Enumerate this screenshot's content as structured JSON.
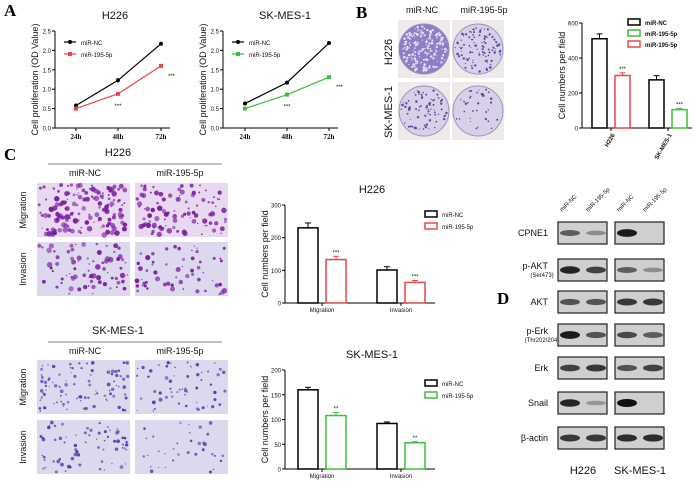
{
  "panel_labels": {
    "a": "A",
    "b": "B",
    "c": "C",
    "d": "D"
  },
  "colors": {
    "control": "#000000",
    "h226": "#e8474b",
    "skmes": "#3cbf3c",
    "stain_dense": "#7a2a9e",
    "stain_light": "#c9b4e0",
    "plate": "#8a7cc0"
  },
  "chart_data": [
    {
      "id": "A-H226",
      "type": "line",
      "title": "H226",
      "ylabel": "Cell proliferation (OD Value)",
      "ylim": [
        0,
        2.5
      ],
      "yticks": [
        0,
        0.5,
        1.0,
        1.5,
        2.0,
        2.5
      ],
      "ytick_labels": [
        "0.0",
        "0.5",
        "1.0",
        "1.5",
        "2.0",
        "2.5"
      ],
      "categories": [
        "24h",
        "48h",
        "72h"
      ],
      "legend": "top-left",
      "series": [
        {
          "name": "miR-NC",
          "color": "#000000",
          "values": [
            0.58,
            1.23,
            2.17
          ],
          "errors": [
            0.03,
            0.06,
            0.03
          ]
        },
        {
          "name": "miR-195-5p",
          "color": "#e8474b",
          "values": [
            0.5,
            0.88,
            1.6
          ],
          "errors": [
            0.03,
            0.03,
            0.05
          ]
        }
      ],
      "annotations": [
        "",
        "***",
        "***"
      ]
    },
    {
      "id": "A-SKMES1",
      "type": "line",
      "title": "SK-MES-1",
      "ylabel": "Cell proliferation (OD Value)",
      "ylim": [
        0,
        2.5
      ],
      "yticks": [
        0,
        0.5,
        1.0,
        1.5,
        2.0,
        2.5
      ],
      "ytick_labels": [
        "0.0",
        "0.5",
        "1.0",
        "1.5",
        "2.0",
        "2.5"
      ],
      "categories": [
        "24h",
        "48h",
        "72h"
      ],
      "legend": "top-left",
      "series": [
        {
          "name": "miR-NC",
          "color": "#000000",
          "values": [
            0.63,
            1.17,
            2.19
          ],
          "errors": [
            0.02,
            0.03,
            0.04
          ]
        },
        {
          "name": "miR-195-5p",
          "color": "#3cbf3c",
          "values": [
            0.5,
            0.86,
            1.31
          ],
          "errors": [
            0.02,
            0.02,
            0.03
          ]
        }
      ],
      "annotations": [
        "",
        "***",
        "***"
      ]
    },
    {
      "id": "B-colony",
      "type": "bar",
      "title": "",
      "ylabel": "Cell numbers per field",
      "ylim": [
        0,
        600
      ],
      "yticks": [
        0,
        200,
        400,
        600
      ],
      "ytick_labels": [
        "0",
        "200",
        "400",
        "600"
      ],
      "categories": [
        "H226",
        "SK-MES-1"
      ],
      "legend": "top-right",
      "legend_entries": [
        {
          "name": "miR-NC",
          "color": "#000000"
        },
        {
          "name": "miR-195-5p",
          "color": "#3cbf3c"
        },
        {
          "name": "miR-195-5p",
          "color": "#e8474b"
        }
      ],
      "groups": [
        {
          "bars": [
            {
              "value": 510,
              "error": 28,
              "color": "#000000",
              "label": ""
            },
            {
              "value": 300,
              "error": 15,
              "color": "#e8474b",
              "label": "***"
            }
          ]
        },
        {
          "bars": [
            {
              "value": 275,
              "error": 24,
              "color": "#000000",
              "label": ""
            },
            {
              "value": 105,
              "error": 7,
              "color": "#3cbf3c",
              "label": "***"
            }
          ]
        }
      ]
    },
    {
      "id": "C-H226",
      "type": "bar",
      "title": "H226",
      "ylabel": "Cell numbers per field",
      "ylim": [
        0,
        300
      ],
      "yticks": [
        0,
        100,
        200,
        300
      ],
      "ytick_labels": [
        "0",
        "100",
        "200",
        "300"
      ],
      "categories": [
        "Migration",
        "Invasion"
      ],
      "legend": "top-right",
      "legend_entries": [
        {
          "name": "miR-NC",
          "color": "#000000"
        },
        {
          "name": "miR-195-5p",
          "color": "#e8474b"
        }
      ],
      "groups": [
        {
          "bars": [
            {
              "value": 230,
              "error": 15,
              "color": "#000000",
              "label": ""
            },
            {
              "value": 133,
              "error": 10,
              "color": "#e8474b",
              "label": "***"
            }
          ]
        },
        {
          "bars": [
            {
              "value": 101,
              "error": 10,
              "color": "#000000",
              "label": ""
            },
            {
              "value": 63,
              "error": 6,
              "color": "#e8474b",
              "label": "***"
            }
          ]
        }
      ]
    },
    {
      "id": "C-SKMES1",
      "type": "bar",
      "title": "SK-MES-1",
      "ylabel": "Cell numbers per field",
      "ylim": [
        0,
        200
      ],
      "yticks": [
        0,
        50,
        100,
        150,
        200
      ],
      "ytick_labels": [
        "0",
        "50",
        "100",
        "150",
        "200"
      ],
      "categories": [
        "Migration",
        "Invasion"
      ],
      "legend": "top-right",
      "legend_entries": [
        {
          "name": "miR-NC",
          "color": "#000000"
        },
        {
          "name": "miR-195-5p",
          "color": "#3cbf3c"
        }
      ],
      "groups": [
        {
          "bars": [
            {
              "value": 160,
              "error": 5,
              "color": "#000000",
              "label": ""
            },
            {
              "value": 108,
              "error": 6,
              "color": "#3cbf3c",
              "label": "**"
            }
          ]
        },
        {
          "bars": [
            {
              "value": 92,
              "error": 3,
              "color": "#000000",
              "label": ""
            },
            {
              "value": 53,
              "error": 2,
              "color": "#3cbf3c",
              "label": "**"
            }
          ]
        }
      ]
    }
  ],
  "panel_b": {
    "columns": [
      "miR-NC",
      "miR-195-5p"
    ],
    "rows": [
      "H226",
      "SK-MES-1"
    ],
    "colony_density": [
      [
        0.9,
        0.45
      ],
      [
        0.35,
        0.15
      ]
    ]
  },
  "panel_c": {
    "sections": [
      {
        "title": "H226",
        "columns": [
          "miR-NC",
          "miR-195-5p"
        ],
        "rows": [
          "Migration",
          "Invasion"
        ],
        "cell_density": [
          [
            0.9,
            0.6
          ],
          [
            0.45,
            0.35
          ]
        ]
      },
      {
        "title": "SK-MES-1",
        "columns": [
          "miR-NC",
          "miR-195-5p"
        ],
        "rows": [
          "Migration",
          "Invasion"
        ],
        "cell_density": [
          [
            0.55,
            0.35
          ],
          [
            0.4,
            0.2
          ]
        ]
      }
    ]
  },
  "panel_d": {
    "lanes": [
      "miR-NC",
      "miR-195-5p",
      "miR-NC",
      "miR-195-5p"
    ],
    "cell_lines": [
      "H226",
      "SK-MES-1"
    ],
    "proteins": [
      {
        "name": "CPNE1",
        "sub": "",
        "intensity": [
          0.6,
          0.35,
          0.95,
          0.0
        ]
      },
      {
        "name": "p-AKT",
        "sub": "(Ser473)",
        "intensity": [
          0.9,
          0.75,
          0.6,
          0.35
        ]
      },
      {
        "name": "AKT",
        "sub": "",
        "intensity": [
          0.65,
          0.65,
          0.8,
          0.8
        ]
      },
      {
        "name": "p-Erk",
        "sub": "(Thr202/204)",
        "intensity": [
          0.95,
          0.65,
          0.7,
          0.6
        ]
      },
      {
        "name": "Erk",
        "sub": "",
        "intensity": [
          0.75,
          0.8,
          0.65,
          0.75
        ]
      },
      {
        "name": "Snail",
        "sub": "",
        "intensity": [
          0.9,
          0.3,
          1.0,
          0.0
        ]
      },
      {
        "name": "β-actin",
        "sub": "",
        "intensity": [
          0.8,
          0.8,
          0.85,
          0.85
        ]
      }
    ]
  }
}
